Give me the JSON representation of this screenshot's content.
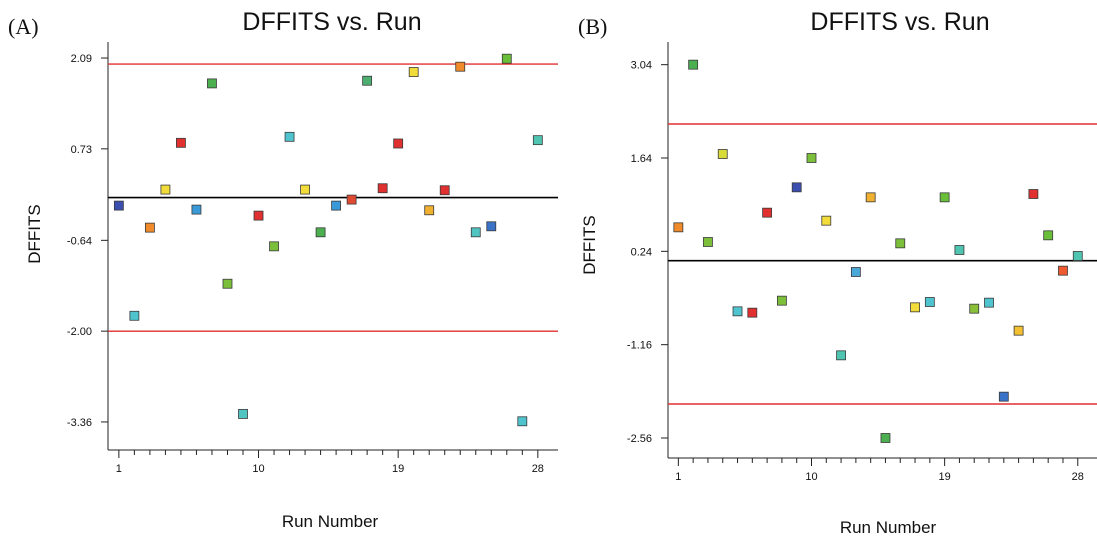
{
  "chart_data": [
    {
      "type": "scatter",
      "panel_label": "(A)",
      "title": "DFFITS vs. Run",
      "xlabel": "Run Number",
      "ylabel": "DFFITS",
      "xlim": [
        0.3,
        29.3
      ],
      "ylim": [
        -3.78,
        2.33
      ],
      "x_ticks": [
        1,
        10,
        19,
        28
      ],
      "y_ticks": [
        2.09,
        0.73,
        -0.64,
        -2.0,
        -3.36
      ],
      "y_tick_labels": [
        "2.09",
        "0.73",
        "-0.64",
        "-2.00",
        "-3.36"
      ],
      "reference_lines": [
        {
          "y": 2.0,
          "color": "#e03030"
        },
        {
          "y": 0.0,
          "color": "#000000"
        },
        {
          "y": -2.0,
          "color": "#e03030"
        }
      ],
      "points": [
        {
          "x": 1,
          "y": -0.12,
          "color": "#3a4fb0"
        },
        {
          "x": 2,
          "y": -1.77,
          "color": "#4fc4cf"
        },
        {
          "x": 3,
          "y": -0.45,
          "color": "#f08a2a"
        },
        {
          "x": 4,
          "y": 0.12,
          "color": "#f2dc3a"
        },
        {
          "x": 5,
          "y": 0.82,
          "color": "#e03030"
        },
        {
          "x": 6,
          "y": -0.18,
          "color": "#3a9ad8"
        },
        {
          "x": 7,
          "y": 1.71,
          "color": "#4caf50"
        },
        {
          "x": 8,
          "y": -1.29,
          "color": "#7cbf3a"
        },
        {
          "x": 9,
          "y": -3.24,
          "color": "#4fc4c0"
        },
        {
          "x": 10,
          "y": -0.27,
          "color": "#e03030"
        },
        {
          "x": 11,
          "y": -0.73,
          "color": "#7cbf3a"
        },
        {
          "x": 12,
          "y": 0.91,
          "color": "#4fc4cf"
        },
        {
          "x": 13,
          "y": 0.12,
          "color": "#f2dc3a"
        },
        {
          "x": 14,
          "y": -0.52,
          "color": "#4caf50"
        },
        {
          "x": 15,
          "y": -0.12,
          "color": "#3a9ad8"
        },
        {
          "x": 16,
          "y": -0.03,
          "color": "#e04a30"
        },
        {
          "x": 17,
          "y": 1.75,
          "color": "#4caf70"
        },
        {
          "x": 18,
          "y": 0.14,
          "color": "#e03030"
        },
        {
          "x": 19,
          "y": 0.81,
          "color": "#e03030"
        },
        {
          "x": 20,
          "y": 1.88,
          "color": "#f2dc3a"
        },
        {
          "x": 21,
          "y": -0.19,
          "color": "#f0b030"
        },
        {
          "x": 22,
          "y": 0.11,
          "color": "#e03030"
        },
        {
          "x": 23,
          "y": 1.96,
          "color": "#f08a2a"
        },
        {
          "x": 24,
          "y": -0.52,
          "color": "#4fc4c0"
        },
        {
          "x": 25,
          "y": -0.43,
          "color": "#3a72c8"
        },
        {
          "x": 26,
          "y": 2.08,
          "color": "#6abf3a"
        },
        {
          "x": 27,
          "y": -3.35,
          "color": "#4fc4cf"
        },
        {
          "x": 28,
          "y": 0.86,
          "color": "#4fc4b0"
        }
      ]
    },
    {
      "type": "scatter",
      "panel_label": "(B)",
      "title": "DFFITS vs. Run",
      "xlabel": "Run Number",
      "ylabel": "DFFITS",
      "xlim": [
        0.3,
        29.3
      ],
      "ylim": [
        -2.86,
        3.38
      ],
      "x_ticks": [
        1,
        10,
        19,
        28
      ],
      "y_ticks": [
        3.04,
        1.64,
        0.24,
        -1.16,
        -2.56
      ],
      "y_tick_labels": [
        "3.04",
        "1.64",
        "0.24",
        "-1.16",
        "-2.56"
      ],
      "reference_lines": [
        {
          "y": 2.15,
          "color": "#e03030"
        },
        {
          "y": 0.1,
          "color": "#000000"
        },
        {
          "y": -2.05,
          "color": "#e03030"
        }
      ],
      "points": [
        {
          "x": 1,
          "y": 0.6,
          "color": "#f08a2a"
        },
        {
          "x": 2,
          "y": 3.04,
          "color": "#4caf50"
        },
        {
          "x": 3,
          "y": 0.38,
          "color": "#7cbf3a"
        },
        {
          "x": 4,
          "y": 1.7,
          "color": "#d8dc3a"
        },
        {
          "x": 5,
          "y": -0.66,
          "color": "#4fc4cf"
        },
        {
          "x": 6,
          "y": -0.68,
          "color": "#e03030"
        },
        {
          "x": 7,
          "y": 0.82,
          "color": "#e03030"
        },
        {
          "x": 8,
          "y": -0.5,
          "color": "#7cbf3a"
        },
        {
          "x": 9,
          "y": 1.2,
          "color": "#3a4fb0"
        },
        {
          "x": 10,
          "y": 1.64,
          "color": "#7cbf3a"
        },
        {
          "x": 11,
          "y": 0.7,
          "color": "#f2dc3a"
        },
        {
          "x": 12,
          "y": -1.32,
          "color": "#4fc4b0"
        },
        {
          "x": 13,
          "y": -0.07,
          "color": "#4aa8d8"
        },
        {
          "x": 14,
          "y": 1.05,
          "color": "#f0b030"
        },
        {
          "x": 15,
          "y": -2.56,
          "color": "#4caf50"
        },
        {
          "x": 16,
          "y": 0.36,
          "color": "#7cbf3a"
        },
        {
          "x": 17,
          "y": -0.6,
          "color": "#f2dc3a"
        },
        {
          "x": 18,
          "y": -0.52,
          "color": "#4fc4cf"
        },
        {
          "x": 19,
          "y": 1.05,
          "color": "#6abf3a"
        },
        {
          "x": 20,
          "y": 0.26,
          "color": "#4fc4b0"
        },
        {
          "x": 21,
          "y": -0.62,
          "color": "#8abf3a"
        },
        {
          "x": 22,
          "y": -0.53,
          "color": "#4fc4cf"
        },
        {
          "x": 23,
          "y": -1.94,
          "color": "#3a72c8"
        },
        {
          "x": 24,
          "y": -0.95,
          "color": "#f2c030"
        },
        {
          "x": 25,
          "y": 1.1,
          "color": "#e03030"
        },
        {
          "x": 26,
          "y": 0.48,
          "color": "#6abf3a"
        },
        {
          "x": 27,
          "y": -0.05,
          "color": "#f05a30"
        },
        {
          "x": 28,
          "y": 0.17,
          "color": "#4fc4b0"
        }
      ]
    }
  ]
}
